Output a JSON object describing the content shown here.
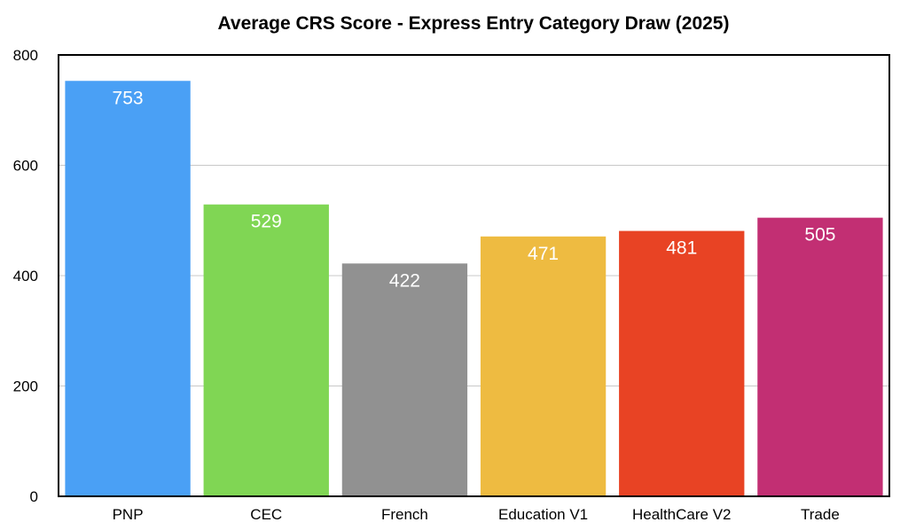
{
  "chart_data": {
    "type": "bar",
    "title": "Average CRS Score - Express Entry Category Draw (2025)",
    "xlabel": "",
    "ylabel": "",
    "categories": [
      "PNP",
      "CEC",
      "French",
      "Education V1",
      "HealthCare V2",
      "Trade"
    ],
    "values": [
      753,
      529,
      422,
      471,
      481,
      505
    ],
    "data_labels": [
      "753",
      "529",
      "422",
      "471",
      "481",
      "505"
    ],
    "colors": [
      "#4aa0f5",
      "#80d654",
      "#919191",
      "#eebb41",
      "#e84324",
      "#c22f73"
    ],
    "ylim": [
      0,
      800
    ],
    "yticks": [
      0,
      200,
      400,
      600,
      800
    ],
    "ytick_labels": [
      "0",
      "200",
      "400",
      "600",
      "800"
    ],
    "grid": true,
    "legend": "none"
  }
}
